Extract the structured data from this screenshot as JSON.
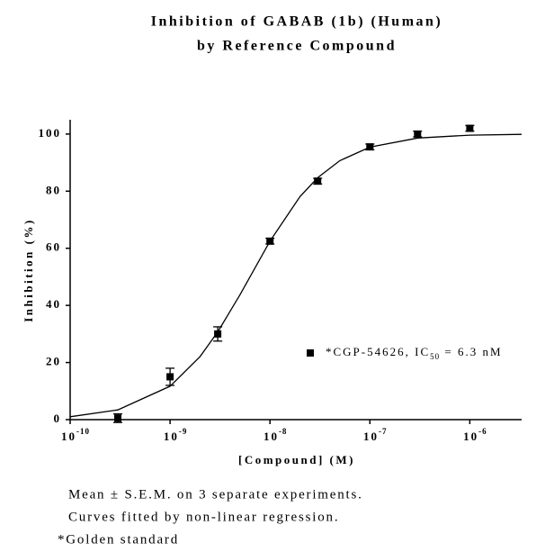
{
  "chart_data": {
    "type": "scatter",
    "title": [
      "Inhibition of GABAB (1b) (Human)",
      "by Reference Compound"
    ],
    "x_label": "[Compound] (M)",
    "y_label": "Inhibition (%)",
    "xscale": "log",
    "xlim": [
      1e-10,
      3.3e-06
    ],
    "ylim": [
      0,
      105
    ],
    "xticks": [
      {
        "value": 1e-10,
        "label": "10",
        "exponent": "-10"
      },
      {
        "value": 1e-09,
        "label": "10",
        "exponent": "-9"
      },
      {
        "value": 1e-08,
        "label": "10",
        "exponent": "-8"
      },
      {
        "value": 1e-07,
        "label": "10",
        "exponent": "-7"
      },
      {
        "value": 1e-06,
        "label": "10",
        "exponent": "-6"
      }
    ],
    "yticks": [
      0,
      20,
      40,
      60,
      80,
      100
    ],
    "grid": false,
    "series": [
      {
        "name": "*CGP-54626, IC",
        "name_subscript": "50",
        "name_tail": " = 6.3 nM",
        "color": "#000000",
        "x": [
          3e-10,
          1e-09,
          3e-09,
          1e-08,
          3e-08,
          1e-07,
          3e-07,
          1e-06
        ],
        "values": [
          0.5,
          15,
          30,
          62.5,
          83.5,
          95.5,
          100,
          102
        ],
        "errors": [
          1.5,
          3,
          2.5,
          1,
          1,
          1,
          1,
          1
        ]
      }
    ],
    "fit": {
      "color": "#000000",
      "x": [
        1e-10,
        3e-10,
        1e-09,
        2e-09,
        3e-09,
        5e-09,
        1e-08,
        2e-08,
        3e-08,
        5e-08,
        1e-07,
        3e-07,
        1e-06,
        3.3e-06
      ],
      "values": [
        1.0,
        3.4,
        11.7,
        22.1,
        30.7,
        43.7,
        62.5,
        78.1,
        84.7,
        90.7,
        95.4,
        98.6,
        99.6,
        99.9
      ]
    },
    "notes": [
      "Mean ± S.E.M. on 3 separate experiments.",
      "Curves fitted by non-linear regression.",
      "*Golden standard"
    ]
  }
}
